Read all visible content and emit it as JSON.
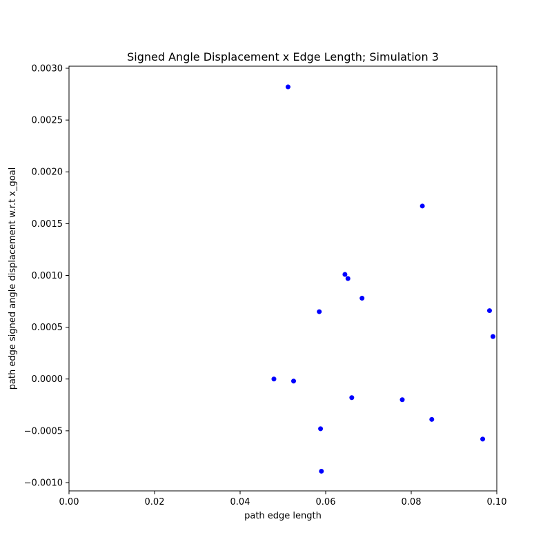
{
  "chart_data": {
    "type": "scatter",
    "title": "Signed Angle Displacement x Edge Length; Simulation 3",
    "xlabel": "path edge length",
    "ylabel": "path edge signed angle displacement w.r.t x_goal",
    "xlim": [
      0.0,
      0.1
    ],
    "ylim": [
      -0.00108,
      0.00302
    ],
    "x_ticks": [
      0.0,
      0.02,
      0.04,
      0.06,
      0.08,
      0.1
    ],
    "x_tick_labels": [
      "0.00",
      "0.02",
      "0.04",
      "0.06",
      "0.08",
      "0.10"
    ],
    "y_ticks": [
      -0.001,
      -0.0005,
      0.0,
      0.0005,
      0.001,
      0.0015,
      0.002,
      0.0025,
      0.003
    ],
    "y_tick_labels": [
      "−0.0010",
      "−0.0005",
      "0.0000",
      "0.0005",
      "0.0010",
      "0.0015",
      "0.0020",
      "0.0025",
      "0.0030"
    ],
    "grid": false,
    "marker_color": "#0000ff",
    "points": [
      {
        "x": 0.0512,
        "y": 0.00282
      },
      {
        "x": 0.0826,
        "y": 0.00167
      },
      {
        "x": 0.0645,
        "y": 0.00101
      },
      {
        "x": 0.0652,
        "y": 0.00097
      },
      {
        "x": 0.0685,
        "y": 0.00078
      },
      {
        "x": 0.0585,
        "y": 0.00065
      },
      {
        "x": 0.0983,
        "y": 0.00066
      },
      {
        "x": 0.0991,
        "y": 0.00041
      },
      {
        "x": 0.0479,
        "y": 0.0
      },
      {
        "x": 0.0525,
        "y": -2e-05
      },
      {
        "x": 0.0661,
        "y": -0.00018
      },
      {
        "x": 0.0779,
        "y": -0.0002
      },
      {
        "x": 0.0848,
        "y": -0.00039
      },
      {
        "x": 0.0588,
        "y": -0.00048
      },
      {
        "x": 0.0967,
        "y": -0.00058
      },
      {
        "x": 0.059,
        "y": -0.00089
      }
    ]
  }
}
